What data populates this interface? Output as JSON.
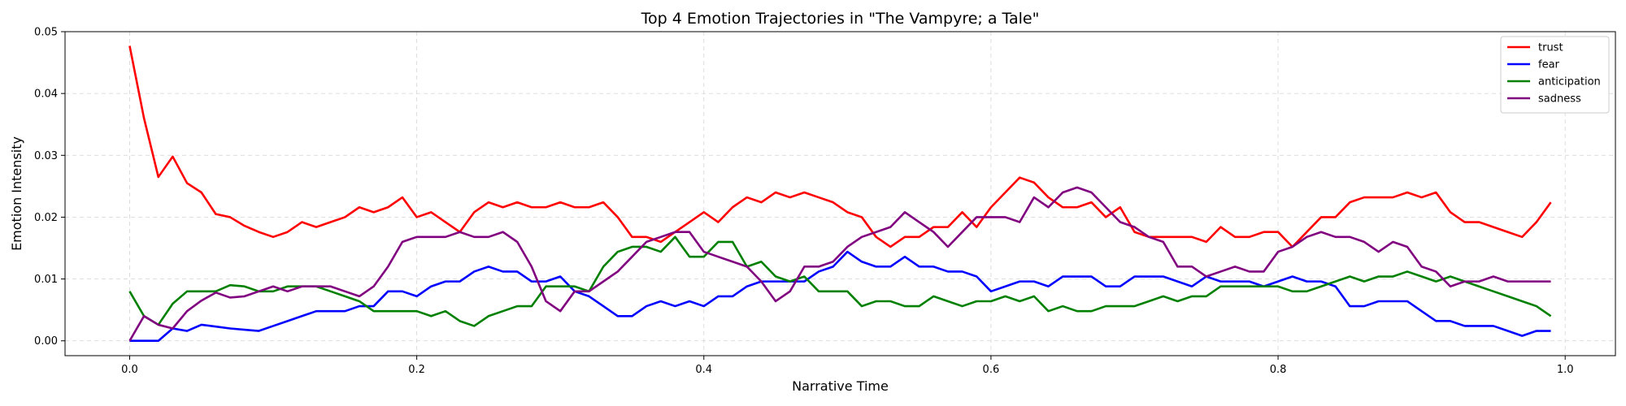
{
  "chart_data": {
    "type": "line",
    "title": "Top 4 Emotion Trajectories in \"The Vampyre; a Tale\"",
    "xlabel": "Narrative Time",
    "ylabel": "Emotion Intensity",
    "xlim": [
      -0.045,
      1.035
    ],
    "ylim": [
      -0.0024,
      0.05
    ],
    "xticks": [
      0.0,
      0.2,
      0.4,
      0.6,
      0.8,
      1.0
    ],
    "xtick_labels": [
      "0.0",
      "0.2",
      "0.4",
      "0.6",
      "0.8",
      "1.0"
    ],
    "yticks": [
      0.0,
      0.01,
      0.02,
      0.03,
      0.04,
      0.05
    ],
    "ytick_labels": [
      "0.00",
      "0.01",
      "0.02",
      "0.03",
      "0.04",
      "0.05"
    ],
    "grid": true,
    "legend_position": "top-right",
    "x": [
      0.0,
      0.01,
      0.02,
      0.03,
      0.04,
      0.05,
      0.06,
      0.07,
      0.08,
      0.09,
      0.1,
      0.11,
      0.12,
      0.13,
      0.14,
      0.15,
      0.16,
      0.17,
      0.18,
      0.19,
      0.2,
      0.21,
      0.22,
      0.23,
      0.24,
      0.25,
      0.26,
      0.27,
      0.28,
      0.29,
      0.3,
      0.31,
      0.32,
      0.33,
      0.34,
      0.35,
      0.36,
      0.37,
      0.38,
      0.39,
      0.4,
      0.41,
      0.42,
      0.43,
      0.44,
      0.45,
      0.46,
      0.47,
      0.48,
      0.49,
      0.5,
      0.51,
      0.52,
      0.53,
      0.54,
      0.55,
      0.56,
      0.57,
      0.58,
      0.59,
      0.6,
      0.61,
      0.62,
      0.63,
      0.64,
      0.65,
      0.66,
      0.67,
      0.68,
      0.69,
      0.7,
      0.71,
      0.72,
      0.73,
      0.74,
      0.75,
      0.76,
      0.77,
      0.78,
      0.79,
      0.8,
      0.81,
      0.82,
      0.83,
      0.84,
      0.85,
      0.86,
      0.87,
      0.88,
      0.89,
      0.9,
      0.91,
      0.92,
      0.93,
      0.94,
      0.95,
      0.96,
      0.97,
      0.98,
      0.99
    ],
    "series": [
      {
        "name": "trust",
        "color": "#ff0000",
        "values": [
          0.0477,
          0.036,
          0.0265,
          0.0298,
          0.0255,
          0.024,
          0.0205,
          0.02,
          0.0186,
          0.0176,
          0.0168,
          0.0176,
          0.0192,
          0.0184,
          0.0192,
          0.02,
          0.0216,
          0.0208,
          0.0216,
          0.0232,
          0.02,
          0.0208,
          0.0192,
          0.0176,
          0.0208,
          0.0224,
          0.0216,
          0.0224,
          0.0216,
          0.0216,
          0.0224,
          0.0216,
          0.0216,
          0.0224,
          0.02,
          0.0168,
          0.0168,
          0.016,
          0.0176,
          0.0192,
          0.0208,
          0.0192,
          0.0216,
          0.0232,
          0.0224,
          0.024,
          0.0232,
          0.024,
          0.0232,
          0.0224,
          0.0208,
          0.02,
          0.0168,
          0.0152,
          0.0168,
          0.0168,
          0.0184,
          0.0184,
          0.0208,
          0.0184,
          0.0216,
          0.024,
          0.0264,
          0.0256,
          0.0232,
          0.0216,
          0.0216,
          0.0224,
          0.02,
          0.0216,
          0.0176,
          0.0168,
          0.0168,
          0.0168,
          0.0168,
          0.016,
          0.0184,
          0.0168,
          0.0168,
          0.0176,
          0.0176,
          0.0152,
          0.0176,
          0.02,
          0.02,
          0.0224,
          0.0232,
          0.0232,
          0.0232,
          0.024,
          0.0232,
          0.024,
          0.0208,
          0.0192,
          0.0192,
          0.0184,
          0.0176,
          0.0168,
          0.0192,
          0.0224
        ]
      },
      {
        "name": "fear",
        "color": "#0000ff",
        "values": [
          0.0,
          0.0,
          0.0,
          0.002,
          0.0016,
          0.0026,
          0.0023,
          0.002,
          0.0018,
          0.0016,
          0.0024,
          0.0032,
          0.004,
          0.0048,
          0.0048,
          0.0048,
          0.0056,
          0.0056,
          0.008,
          0.008,
          0.0072,
          0.0088,
          0.0096,
          0.0096,
          0.0112,
          0.012,
          0.0112,
          0.0112,
          0.0096,
          0.0096,
          0.0104,
          0.008,
          0.0072,
          0.0056,
          0.004,
          0.004,
          0.0056,
          0.0064,
          0.0056,
          0.0064,
          0.0056,
          0.0072,
          0.0072,
          0.0088,
          0.0096,
          0.0096,
          0.0096,
          0.0096,
          0.0112,
          0.012,
          0.0144,
          0.0128,
          0.012,
          0.012,
          0.0136,
          0.012,
          0.012,
          0.0112,
          0.0112,
          0.0104,
          0.008,
          0.0088,
          0.0096,
          0.0096,
          0.0088,
          0.0104,
          0.0104,
          0.0104,
          0.0088,
          0.0088,
          0.0104,
          0.0104,
          0.0104,
          0.0096,
          0.0088,
          0.0104,
          0.0096,
          0.0096,
          0.0096,
          0.0088,
          0.0096,
          0.0104,
          0.0096,
          0.0096,
          0.0088,
          0.0056,
          0.0056,
          0.0064,
          0.0064,
          0.0064,
          0.0048,
          0.0032,
          0.0032,
          0.0024,
          0.0024,
          0.0024,
          0.0016,
          0.0008,
          0.0016,
          0.0016
        ]
      },
      {
        "name": "anticipation",
        "color": "#008000",
        "values": [
          0.008,
          0.004,
          0.0026,
          0.006,
          0.008,
          0.008,
          0.008,
          0.009,
          0.0088,
          0.008,
          0.008,
          0.0088,
          0.0088,
          0.0088,
          0.008,
          0.0072,
          0.0064,
          0.0048,
          0.0048,
          0.0048,
          0.0048,
          0.004,
          0.0048,
          0.0032,
          0.0024,
          0.004,
          0.0048,
          0.0056,
          0.0056,
          0.0088,
          0.0088,
          0.0088,
          0.008,
          0.012,
          0.0144,
          0.0152,
          0.0152,
          0.0144,
          0.0168,
          0.0136,
          0.0136,
          0.016,
          0.016,
          0.012,
          0.0128,
          0.0104,
          0.0096,
          0.0104,
          0.008,
          0.008,
          0.008,
          0.0056,
          0.0064,
          0.0064,
          0.0056,
          0.0056,
          0.0072,
          0.0064,
          0.0056,
          0.0064,
          0.0064,
          0.0072,
          0.0064,
          0.0072,
          0.0048,
          0.0056,
          0.0048,
          0.0048,
          0.0056,
          0.0056,
          0.0056,
          0.0064,
          0.0072,
          0.0064,
          0.0072,
          0.0072,
          0.0088,
          0.0088,
          0.0088,
          0.0088,
          0.0088,
          0.008,
          0.008,
          0.0088,
          0.0096,
          0.0104,
          0.0096,
          0.0104,
          0.0104,
          0.0112,
          0.0104,
          0.0096,
          0.0104,
          0.0096,
          0.0088,
          0.008,
          0.0072,
          0.0064,
          0.0056,
          0.004
        ]
      },
      {
        "name": "sadness",
        "color": "#800080",
        "values": [
          0.0,
          0.004,
          0.0026,
          0.002,
          0.0048,
          0.0065,
          0.0078,
          0.007,
          0.0072,
          0.008,
          0.0088,
          0.008,
          0.0088,
          0.0088,
          0.0088,
          0.008,
          0.0072,
          0.0088,
          0.012,
          0.016,
          0.0168,
          0.0168,
          0.0168,
          0.0176,
          0.0168,
          0.0168,
          0.0176,
          0.016,
          0.012,
          0.0064,
          0.0048,
          0.008,
          0.008,
          0.0096,
          0.0112,
          0.0136,
          0.016,
          0.0168,
          0.0176,
          0.0176,
          0.0144,
          0.0136,
          0.0128,
          0.012,
          0.0096,
          0.0064,
          0.008,
          0.012,
          0.012,
          0.0128,
          0.0152,
          0.0168,
          0.0176,
          0.0184,
          0.0208,
          0.0192,
          0.0176,
          0.0152,
          0.0176,
          0.02,
          0.02,
          0.02,
          0.0192,
          0.0232,
          0.0216,
          0.024,
          0.0248,
          0.024,
          0.0216,
          0.0192,
          0.0184,
          0.0168,
          0.016,
          0.012,
          0.012,
          0.0104,
          0.0112,
          0.012,
          0.0112,
          0.0112,
          0.0144,
          0.0152,
          0.0168,
          0.0176,
          0.0168,
          0.0168,
          0.016,
          0.0144,
          0.016,
          0.0152,
          0.012,
          0.0112,
          0.0088,
          0.0096,
          0.0096,
          0.0104,
          0.0096,
          0.0096,
          0.0096,
          0.0096
        ]
      }
    ]
  }
}
